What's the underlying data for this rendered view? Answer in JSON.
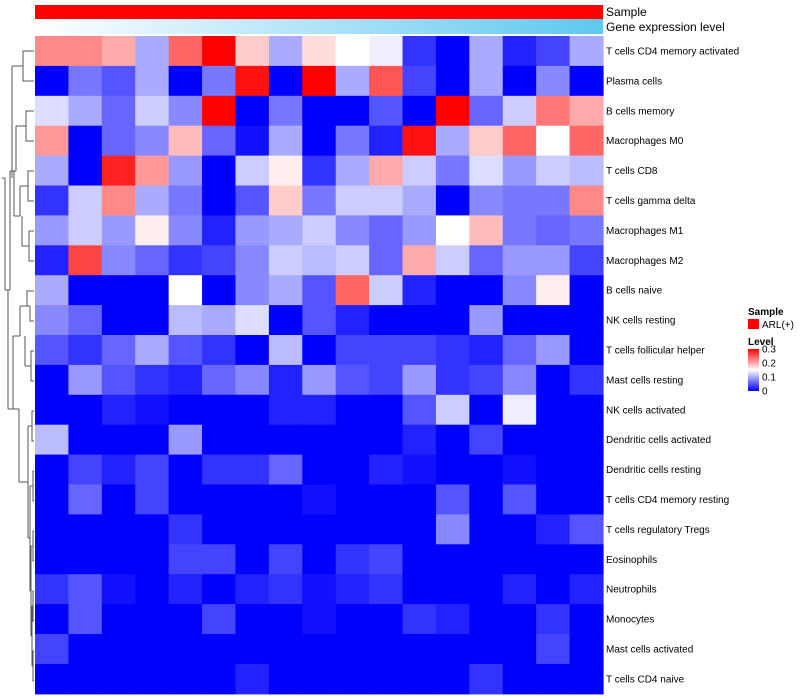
{
  "chart_data": {
    "type": "heatmap",
    "title": "",
    "column_annotations": [
      {
        "label": "Sample",
        "color_scheme": "solid",
        "color": "#ff0000"
      },
      {
        "label": "Gene expression level",
        "color_scheme": "gradient",
        "from": "#ffffff",
        "to": "#5ec8f0"
      }
    ],
    "rows": [
      "T cells CD4 memory activated",
      "Plasma cells",
      "B cells memory",
      "Macrophages M0",
      "T cells CD8",
      "T cells gamma delta",
      "Macrophages M1",
      "Macrophages M2",
      "B cells naive",
      "NK cells resting",
      "T cells follicular helper",
      "Mast cells resting",
      "NK cells activated",
      "Dendritic cells activated",
      "Dendritic cells resting",
      "T cells CD4 memory resting",
      "T cells regulatory  Tregs",
      "Eosinophils",
      "Neutrophils",
      "Monocytes",
      "Mast cells activated",
      "T cells CD4 naive"
    ],
    "n_columns": 17,
    "values": [
      [
        0.22,
        0.22,
        0.2,
        0.1,
        0.24,
        0.3,
        0.18,
        0.1,
        0.17,
        0.15,
        0.14,
        0.03,
        0.0,
        0.1,
        0.02,
        0.04,
        0.1
      ],
      [
        0.0,
        0.07,
        0.05,
        0.1,
        0.0,
        0.07,
        0.29,
        0.0,
        0.3,
        0.1,
        0.25,
        0.04,
        0.0,
        0.1,
        0.0,
        0.08,
        0.0
      ],
      [
        0.13,
        0.1,
        0.06,
        0.12,
        0.08,
        0.3,
        0.0,
        0.07,
        0.0,
        0.0,
        0.05,
        0.0,
        0.3,
        0.06,
        0.12,
        0.23,
        0.2
      ],
      [
        0.21,
        0.0,
        0.06,
        0.08,
        0.19,
        0.06,
        0.01,
        0.1,
        0.0,
        0.07,
        0.02,
        0.29,
        0.1,
        0.18,
        0.24,
        0.15,
        0.24
      ],
      [
        0.1,
        0.0,
        0.28,
        0.21,
        0.09,
        0.0,
        0.12,
        0.16,
        0.03,
        0.1,
        0.2,
        0.12,
        0.07,
        0.13,
        0.09,
        0.12,
        0.11
      ],
      [
        0.03,
        0.12,
        0.22,
        0.1,
        0.07,
        0.0,
        0.05,
        0.18,
        0.07,
        0.12,
        0.12,
        0.1,
        0.0,
        0.08,
        0.07,
        0.07,
        0.22
      ],
      [
        0.09,
        0.12,
        0.09,
        0.16,
        0.08,
        0.02,
        0.09,
        0.1,
        0.12,
        0.08,
        0.06,
        0.09,
        0.15,
        0.19,
        0.07,
        0.06,
        0.07
      ],
      [
        0.02,
        0.26,
        0.08,
        0.06,
        0.03,
        0.04,
        0.08,
        0.12,
        0.11,
        0.12,
        0.06,
        0.2,
        0.12,
        0.06,
        0.09,
        0.09,
        0.04
      ],
      [
        0.1,
        0.0,
        0.0,
        0.0,
        0.15,
        0.0,
        0.08,
        0.1,
        0.05,
        0.24,
        0.12,
        0.02,
        0.0,
        0.0,
        0.08,
        0.16,
        0.0
      ],
      [
        0.08,
        0.06,
        0.0,
        0.0,
        0.11,
        0.1,
        0.13,
        0.0,
        0.05,
        0.02,
        0.0,
        0.0,
        0.0,
        0.09,
        0.0,
        0.0,
        0.0
      ],
      [
        0.05,
        0.03,
        0.06,
        0.1,
        0.05,
        0.03,
        0.0,
        0.11,
        0.0,
        0.04,
        0.04,
        0.04,
        0.03,
        0.02,
        0.06,
        0.09,
        0.0
      ],
      [
        0.0,
        0.09,
        0.05,
        0.03,
        0.02,
        0.06,
        0.08,
        0.02,
        0.09,
        0.05,
        0.04,
        0.09,
        0.03,
        0.04,
        0.08,
        0.0,
        0.03
      ],
      [
        0.0,
        0.0,
        0.02,
        0.01,
        0.0,
        0.0,
        0.0,
        0.02,
        0.02,
        0.0,
        0.0,
        0.05,
        0.12,
        0.0,
        0.14,
        0.0,
        0.0
      ],
      [
        0.11,
        0.0,
        0.0,
        0.0,
        0.09,
        0.0,
        0.0,
        0.0,
        0.0,
        0.0,
        0.0,
        0.02,
        0.0,
        0.04,
        0.0,
        0.0,
        0.0
      ],
      [
        0.0,
        0.04,
        0.02,
        0.04,
        0.0,
        0.03,
        0.03,
        0.06,
        0.0,
        0.0,
        0.02,
        0.01,
        0.0,
        0.0,
        0.01,
        0.0,
        0.0
      ],
      [
        0.0,
        0.06,
        0.0,
        0.04,
        0.0,
        0.0,
        0.0,
        0.0,
        0.01,
        0.0,
        0.0,
        0.0,
        0.05,
        0.0,
        0.05,
        0.0,
        0.0
      ],
      [
        0.0,
        0.0,
        0.0,
        0.0,
        0.03,
        0.0,
        0.0,
        0.0,
        0.0,
        0.0,
        0.0,
        0.0,
        0.08,
        0.0,
        0.0,
        0.02,
        0.05
      ],
      [
        0.0,
        0.0,
        0.0,
        0.0,
        0.04,
        0.04,
        0.0,
        0.04,
        0.0,
        0.03,
        0.04,
        0.0,
        0.0,
        0.0,
        0.0,
        0.0,
        0.0
      ],
      [
        0.03,
        0.05,
        0.01,
        0.0,
        0.02,
        0.0,
        0.02,
        0.03,
        0.01,
        0.02,
        0.03,
        0.0,
        0.0,
        0.0,
        0.02,
        0.0,
        0.02
      ],
      [
        0.0,
        0.05,
        0.0,
        0.0,
        0.0,
        0.04,
        0.0,
        0.0,
        0.01,
        0.0,
        0.0,
        0.03,
        0.02,
        0.0,
        0.0,
        0.03,
        0.0
      ],
      [
        0.04,
        0.0,
        0.0,
        0.0,
        0.0,
        0.0,
        0.0,
        0.0,
        0.0,
        0.0,
        0.0,
        0.0,
        0.0,
        0.0,
        0.0,
        0.04,
        0.0
      ],
      [
        0.0,
        0.0,
        0.0,
        0.0,
        0.0,
        0.0,
        0.02,
        0.0,
        0.0,
        0.0,
        0.0,
        0.0,
        0.0,
        0.03,
        0.0,
        0.0,
        0.0
      ]
    ],
    "color_scale": {
      "min": 0,
      "max": 0.3,
      "low_color": "#0000ff",
      "mid_color": "#ffffff",
      "high_color": "#ff0000"
    },
    "legend": {
      "position": "right",
      "sample_title": "Sample",
      "sample_entry": "ARL(+)",
      "sample_color": "#ff0000",
      "level_title": "Level",
      "level_ticks": [
        "0.3",
        "0.2",
        "0.1",
        "0"
      ],
      "level_tick_values": [
        0.3,
        0.2,
        0.1,
        0
      ]
    },
    "dendrogram": "row clustering tree on left"
  }
}
